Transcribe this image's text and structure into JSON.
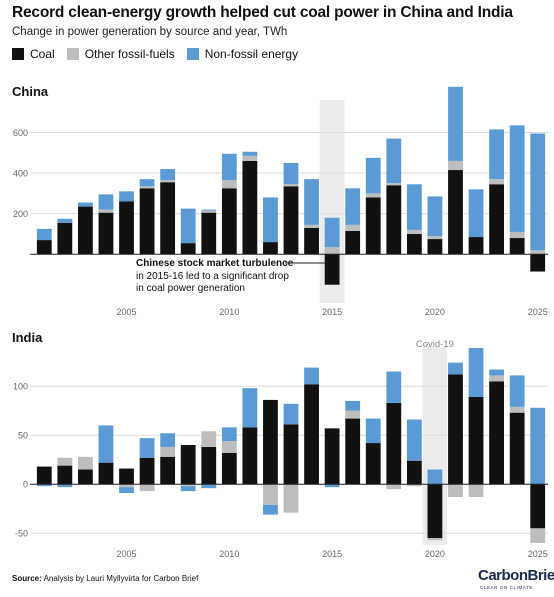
{
  "header": {
    "title": "Record clean-energy growth helped cut coal power in China and India",
    "subtitle": "Change in power generation by source and year, TWh"
  },
  "legend": [
    {
      "label": "Coal",
      "color": "#111111"
    },
    {
      "label": "Other fossil-fuels",
      "color": "#bdbdbd"
    },
    {
      "label": "Non-fossil energy",
      "color": "#5b9bd5"
    }
  ],
  "colors": {
    "coal": "#111111",
    "other": "#bdbdbd",
    "nonfossil": "#5b9bd5",
    "highlight": "#ebebeb",
    "grid": "#dddddd"
  },
  "footer": {
    "source_label": "Source:",
    "source_text": "Analysis by Lauri Myllyvirta for Carbon Brief"
  },
  "brand": {
    "name": "CarbonBrief",
    "tagline": "CLEAR ON CLIMATE"
  },
  "chart_data": [
    {
      "type": "bar",
      "title": "China",
      "stacked": true,
      "x": [
        2001,
        2002,
        2003,
        2004,
        2005,
        2006,
        2007,
        2008,
        2009,
        2010,
        2011,
        2012,
        2013,
        2014,
        2015,
        2016,
        2017,
        2018,
        2019,
        2020,
        2021,
        2022,
        2023,
        2024,
        2025
      ],
      "series": [
        {
          "name": "Coal",
          "values": [
            70,
            155,
            235,
            205,
            260,
            325,
            355,
            55,
            205,
            325,
            460,
            60,
            335,
            130,
            -150,
            115,
            280,
            340,
            100,
            75,
            415,
            85,
            345,
            80,
            -85
          ]
        },
        {
          "name": "Other fossil-fuels",
          "values": [
            0,
            0,
            0,
            15,
            0,
            10,
            10,
            0,
            10,
            40,
            25,
            0,
            10,
            15,
            35,
            30,
            20,
            10,
            20,
            15,
            45,
            0,
            25,
            30,
            20
          ]
        },
        {
          "name": "Non-fossil energy",
          "values": [
            55,
            20,
            20,
            75,
            50,
            35,
            55,
            170,
            5,
            130,
            20,
            220,
            105,
            225,
            145,
            180,
            175,
            220,
            225,
            195,
            365,
            235,
            245,
            525,
            575
          ]
        }
      ],
      "yticks": [
        200,
        400,
        600
      ],
      "ylim": [
        -240,
        760
      ],
      "xticks": [
        2005,
        2010,
        2015,
        2020,
        2025
      ],
      "highlight_year": 2015,
      "annotation": {
        "bold": "Chinese stock market turbulence",
        "text": " in 2015-16 led to a significant drop in coal power generation"
      },
      "grid": true,
      "legend": "top"
    },
    {
      "type": "bar",
      "title": "India",
      "stacked": true,
      "x": [
        2001,
        2002,
        2003,
        2004,
        2005,
        2006,
        2007,
        2008,
        2009,
        2010,
        2011,
        2012,
        2013,
        2014,
        2015,
        2016,
        2017,
        2018,
        2019,
        2020,
        2021,
        2022,
        2023,
        2024,
        2025
      ],
      "series": [
        {
          "name": "Coal",
          "values": [
            18,
            19,
            15,
            22,
            16,
            27,
            28,
            40,
            38,
            32,
            58,
            86,
            61,
            102,
            57,
            67,
            42,
            83,
            24,
            -55,
            112,
            89,
            105,
            73,
            -45
          ]
        },
        {
          "name": "Other fossil-fuels",
          "values": [
            0,
            8,
            13,
            0,
            -3,
            -7,
            10,
            -2,
            16,
            12,
            0,
            -21,
            -29,
            0,
            0,
            8,
            0,
            -5,
            -2,
            -2,
            -13,
            -13,
            6,
            6,
            -15
          ]
        },
        {
          "name": "Non-fossil energy",
          "values": [
            -2,
            -3,
            0,
            38,
            -6,
            20,
            14,
            -5,
            -4,
            14,
            40,
            -10,
            21,
            17,
            -3,
            10,
            25,
            32,
            42,
            15,
            12,
            50,
            6,
            32,
            78
          ]
        }
      ],
      "yticks": [
        -50,
        0,
        50,
        100
      ],
      "ylim": [
        -62,
        140
      ],
      "xticks": [
        2005,
        2010,
        2015,
        2020,
        2025
      ],
      "highlight_year": 2020,
      "annotation": {
        "text": "Covid-19"
      },
      "grid": true
    }
  ]
}
